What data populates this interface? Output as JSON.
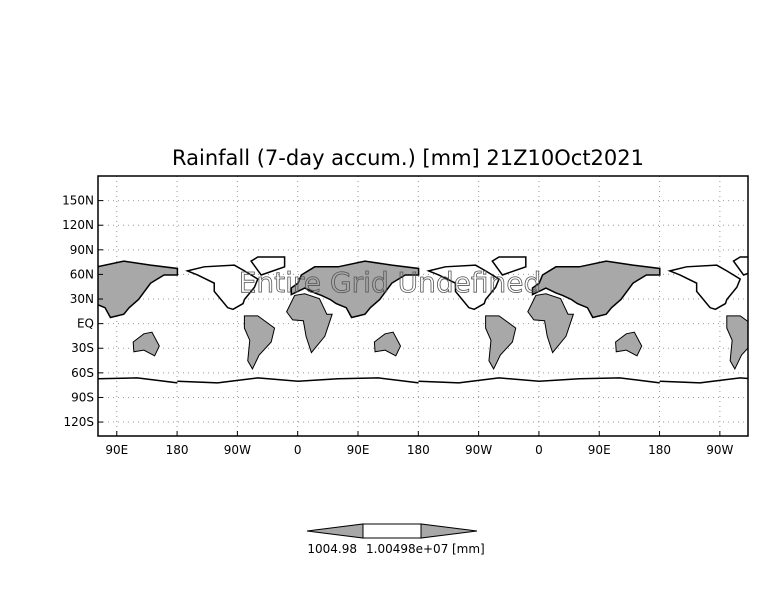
{
  "chart_data": {
    "type": "heatmap",
    "title": "Rainfall (7-day accum.) [mm] 21Z10Oct2021",
    "overlay_text": "Entire Grid Undefined",
    "y_ticks": [
      "150N",
      "120N",
      "90N",
      "60N",
      "30N",
      "EQ",
      "30S",
      "60S",
      "90S",
      "120S"
    ],
    "y_tick_values": [
      150,
      120,
      90,
      60,
      30,
      0,
      -30,
      -60,
      -90,
      -120
    ],
    "x_ticks": [
      "90E",
      "180",
      "90W",
      "0",
      "90E",
      "180",
      "90W",
      "0",
      "90E",
      "180",
      "90W"
    ],
    "x_tick_values": [
      90,
      180,
      270,
      360,
      450,
      540,
      630,
      720,
      810,
      900,
      990
    ],
    "xlim": [
      -298,
      672
    ],
    "ylim": [
      -137,
      180
    ],
    "grid": true,
    "colorbar": {
      "labels": [
        "1004.98",
        "1.00498e+07"
      ],
      "unit": "[mm]",
      "colors": [
        "#a8a8a8",
        "#ffffff",
        "#a8a8a8"
      ]
    }
  }
}
